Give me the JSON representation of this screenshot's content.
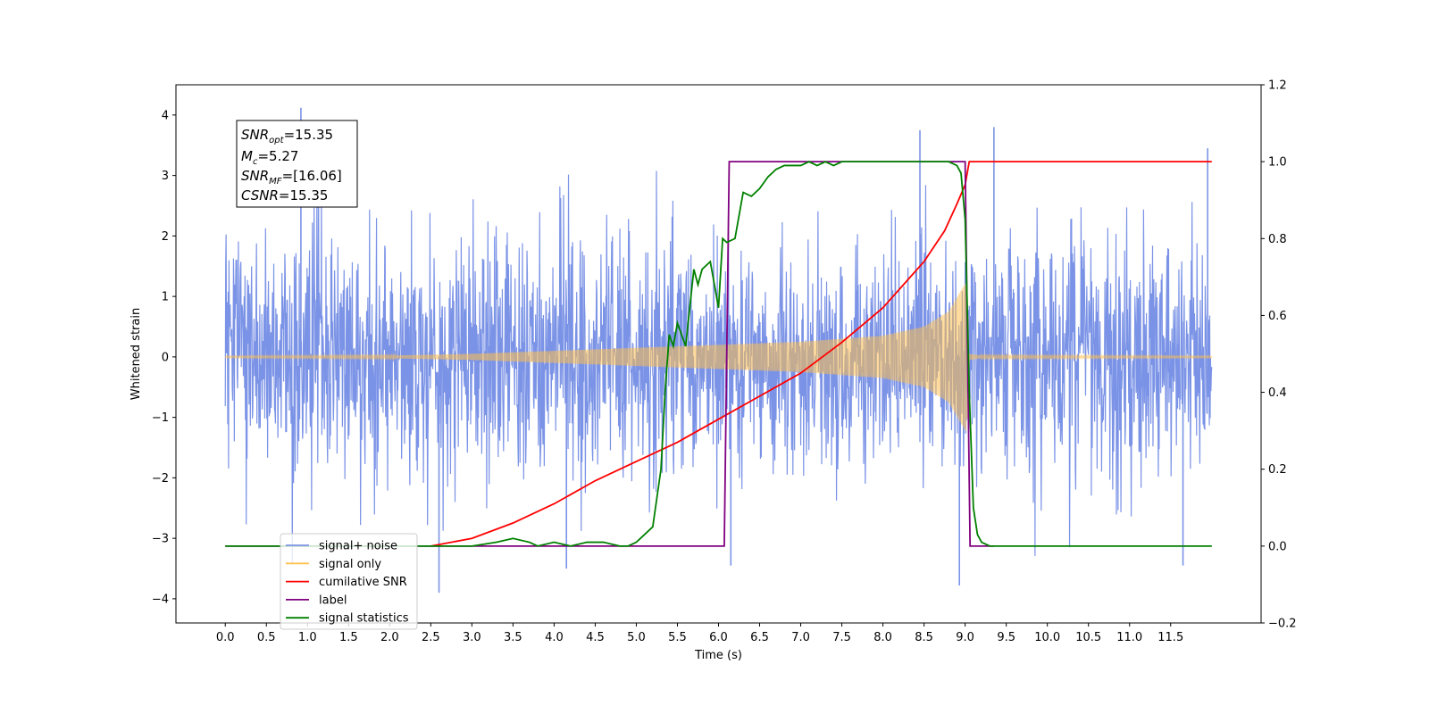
{
  "chart_data": {
    "type": "line",
    "xlabel": "Time (s)",
    "ylabel_left": "Whitened strain",
    "ylabel_right": "",
    "xlim": [
      -0.6,
      12.6
    ],
    "ylim_left": [
      -4.4,
      4.5
    ],
    "ylim_right": [
      -0.2,
      1.2
    ],
    "x_ticks": [
      0.0,
      0.5,
      1.0,
      1.5,
      2.0,
      2.5,
      3.0,
      3.5,
      4.0,
      4.5,
      5.0,
      5.5,
      6.0,
      6.5,
      7.0,
      7.5,
      8.0,
      8.5,
      9.0,
      9.5,
      10.0,
      10.5,
      11.0,
      11.5
    ],
    "x_tick_labels": [
      "0.0",
      "0.5",
      "1.0",
      "1.5",
      "2.0",
      "2.5",
      "3.0",
      "3.5",
      "4.0",
      "4.5",
      "5.0",
      "5.5",
      "6.0",
      "6.5",
      "7.0",
      "7.5",
      "8.0",
      "8.5",
      "9.0",
      "9.5",
      "10.0",
      "10.5",
      "11.0",
      "11.5"
    ],
    "y_ticks_left": [
      -4,
      -3,
      -2,
      -1,
      0,
      1,
      2,
      3,
      4
    ],
    "y_tick_labels_left": [
      "−4",
      "−3",
      "−2",
      "−1",
      "0",
      "1",
      "2",
      "3",
      "4"
    ],
    "y_ticks_right": [
      -0.2,
      0.0,
      0.2,
      0.4,
      0.6,
      0.8,
      1.0,
      1.2
    ],
    "y_tick_labels_right": [
      "−0.2",
      "0.0",
      "0.2",
      "0.4",
      "0.6",
      "0.8",
      "1.0",
      "1.2"
    ],
    "grid": false,
    "legend_position": "lower-left",
    "legend": [
      {
        "label": "signal+ noise",
        "color": "#7b93e6"
      },
      {
        "label": "signal only",
        "color": "#ffc04d"
      },
      {
        "label": "cumilative SNR",
        "color": "#ff0000"
      },
      {
        "label": "label",
        "color": "#800080"
      },
      {
        "label": "signal statistics",
        "color": "#008000"
      }
    ],
    "annotation": {
      "snr_opt": {
        "symbol": "SNR",
        "sub": "opt",
        "value": "=15.35"
      },
      "mc": {
        "symbol": "M",
        "sub": "c",
        "value": "=5.27"
      },
      "snr_mf": {
        "symbol": "SNR",
        "sub": "MF",
        "value": "=[16.06]"
      },
      "csnr": {
        "symbol": "CSNR",
        "value": "=15.35"
      }
    },
    "series": [
      {
        "name": "signal+ noise",
        "axis": "left",
        "color": "#7b93e6",
        "style": "noise",
        "x_range": [
          0.0,
          12.0
        ],
        "typical_amplitude": 1.5,
        "extremes": [
          [
            0.92,
            4.12
          ],
          [
            9.35,
            3.8
          ],
          [
            8.45,
            3.75
          ],
          [
            11.95,
            3.45
          ],
          [
            2.6,
            -3.9
          ],
          [
            8.93,
            -3.78
          ],
          [
            6.15,
            -3.45
          ],
          [
            11.65,
            -3.45
          ],
          [
            4.15,
            -3.5
          ]
        ]
      },
      {
        "name": "signal only",
        "axis": "left",
        "color": "#ffc04d",
        "style": "chirp-envelope",
        "x": [
          0.0,
          2.0,
          3.0,
          4.0,
          5.0,
          6.0,
          7.0,
          8.0,
          8.5,
          8.8,
          8.95,
          9.02,
          9.05,
          9.2,
          12.0
        ],
        "envelope": [
          0.01,
          0.02,
          0.05,
          0.1,
          0.15,
          0.2,
          0.25,
          0.35,
          0.5,
          0.75,
          1.1,
          1.25,
          0.05,
          0.02,
          0.01
        ]
      },
      {
        "name": "cumilative SNR",
        "axis": "right",
        "color": "#ff0000",
        "x": [
          2.5,
          3.0,
          3.5,
          4.0,
          4.5,
          5.0,
          5.5,
          6.0,
          6.5,
          7.0,
          7.5,
          8.0,
          8.5,
          8.75,
          8.9,
          9.0,
          9.05,
          12.0
        ],
        "y": [
          0.0,
          0.02,
          0.06,
          0.11,
          0.17,
          0.22,
          0.27,
          0.33,
          0.39,
          0.45,
          0.53,
          0.62,
          0.74,
          0.82,
          0.89,
          0.94,
          1.0,
          1.0
        ]
      },
      {
        "name": "label",
        "axis": "right",
        "color": "#800080",
        "x": [
          0.0,
          6.07,
          6.13,
          9.0,
          9.06,
          9.35
        ],
        "y": [
          0.0,
          0.0,
          1.0,
          1.0,
          0.0,
          0.0
        ]
      },
      {
        "name": "signal statistics",
        "axis": "right",
        "color": "#008000",
        "x": [
          0.0,
          3.0,
          3.3,
          3.5,
          3.7,
          3.8,
          4.0,
          4.2,
          4.4,
          4.6,
          4.8,
          4.9,
          5.0,
          5.1,
          5.2,
          5.3,
          5.35,
          5.4,
          5.45,
          5.5,
          5.6,
          5.7,
          5.75,
          5.8,
          5.9,
          6.0,
          6.05,
          6.1,
          6.2,
          6.3,
          6.4,
          6.5,
          6.6,
          6.7,
          6.8,
          6.9,
          7.0,
          7.1,
          7.2,
          7.3,
          7.4,
          7.5,
          8.0,
          8.5,
          8.8,
          8.9,
          8.95,
          9.0,
          9.05,
          9.1,
          9.15,
          9.2,
          9.3,
          12.0
        ],
        "y": [
          0.0,
          0.0,
          0.01,
          0.02,
          0.01,
          0.0,
          0.01,
          0.0,
          0.01,
          0.01,
          0.0,
          0.0,
          0.01,
          0.03,
          0.05,
          0.2,
          0.4,
          0.55,
          0.52,
          0.58,
          0.52,
          0.72,
          0.68,
          0.72,
          0.74,
          0.62,
          0.8,
          0.79,
          0.8,
          0.92,
          0.91,
          0.93,
          0.96,
          0.98,
          0.99,
          0.99,
          0.99,
          1.0,
          0.99,
          1.0,
          0.99,
          1.0,
          1.0,
          1.0,
          1.0,
          0.99,
          0.97,
          0.85,
          0.4,
          0.1,
          0.03,
          0.01,
          0.0,
          0.0
        ]
      }
    ]
  }
}
